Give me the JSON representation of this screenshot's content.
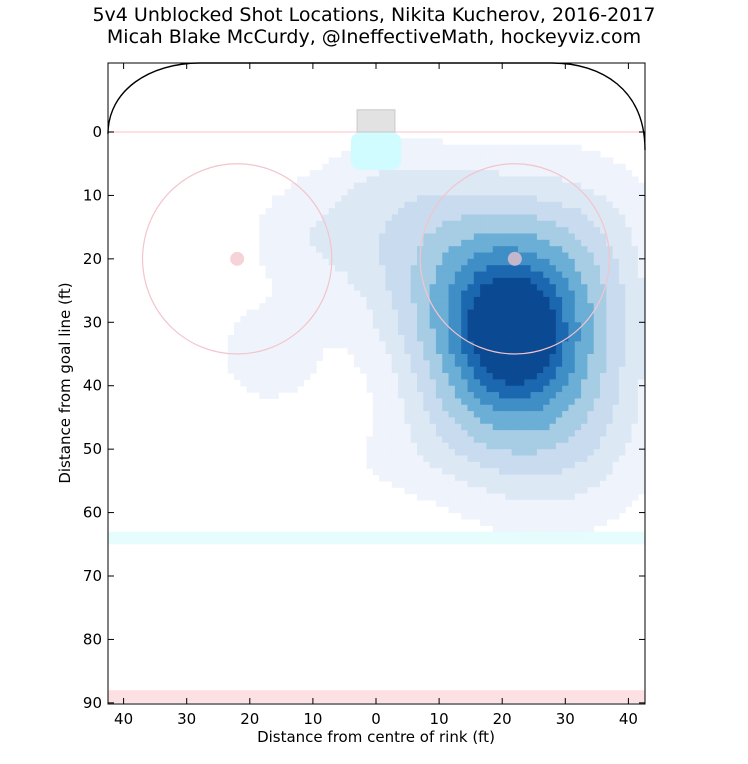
{
  "chart_data": {
    "type": "heatmap",
    "title": "5v4 Unblocked Shot Locations, Nikita Kucherov, 2016-2017",
    "subtitle": "Micah Blake McCurdy, @IneffectiveMath, hockeyviz.com",
    "xlabel": "Distance from centre of rink (ft)",
    "ylabel": "Distance from goal line (ft)",
    "xlim": [
      42.5,
      -42.5
    ],
    "ylim": [
      -11,
      90
    ],
    "x_ticks": [
      40,
      30,
      20,
      10,
      0,
      10,
      20,
      30,
      40
    ],
    "x_tick_values": [
      -40,
      -30,
      -20,
      -10,
      0,
      10,
      20,
      30,
      40
    ],
    "y_ticks": [
      0,
      10,
      20,
      30,
      40,
      50,
      60,
      70,
      80,
      90
    ],
    "grid": false,
    "colormap": [
      "#eff3fb",
      "#dde8f5",
      "#c8dbef",
      "#a6cde4",
      "#6baed6",
      "#3f8fc6",
      "#1c68b0",
      "#0b4a93"
    ],
    "density_peaks": [
      {
        "x": 21.5,
        "y": 31.5,
        "sx": 7.5,
        "sy": 9,
        "weight": 1.0
      },
      {
        "x": 14,
        "y": 24,
        "sx": 10,
        "sy": 9,
        "weight": 0.22
      },
      {
        "x": 8,
        "y": 15,
        "sx": 14,
        "sy": 7,
        "weight": 0.1
      },
      {
        "x": 28,
        "y": 44,
        "sx": 9,
        "sy": 10,
        "weight": 0.22
      },
      {
        "x": 33,
        "y": 22,
        "sx": 7,
        "sy": 10,
        "weight": 0.14
      },
      {
        "x": 13,
        "y": 46,
        "sx": 7,
        "sy": 7,
        "weight": 0.08
      },
      {
        "x": -17,
        "y": 35,
        "sx": 6,
        "sy": 6,
        "weight": 0.055
      },
      {
        "x": -10,
        "y": 17,
        "sx": 6,
        "sy": 5,
        "weight": 0.04
      },
      {
        "x": 2,
        "y": 8,
        "sx": 6,
        "sy": 4,
        "weight": 0.04
      },
      {
        "x": 2,
        "y": 52,
        "sx": 7,
        "sy": 4,
        "weight": 0.025
      }
    ],
    "rink": {
      "faceoff_circles": [
        {
          "x": -22,
          "y": 20,
          "r": 15
        },
        {
          "x": 22,
          "y": 20,
          "r": 15
        }
      ],
      "faceoff_dots": [
        {
          "x": -22,
          "y": 20
        },
        {
          "x": 22,
          "y": 20
        }
      ],
      "goal_line_y": 0,
      "blue_line_y": 64,
      "centre_line_y": 89,
      "crease": {
        "x0": -4,
        "x1": 4,
        "y0": 0,
        "y1": 6
      },
      "net": {
        "x0": -3,
        "x1": 3,
        "y0": -3.5,
        "y1": 0
      },
      "colors": {
        "faceoff": "#f3c4cc",
        "crease": "#ccfcff",
        "blue_line": "#e4fcfc",
        "centre_line": "#fde0e4",
        "net": "#e2e2e2",
        "boards": "#000000"
      }
    }
  }
}
